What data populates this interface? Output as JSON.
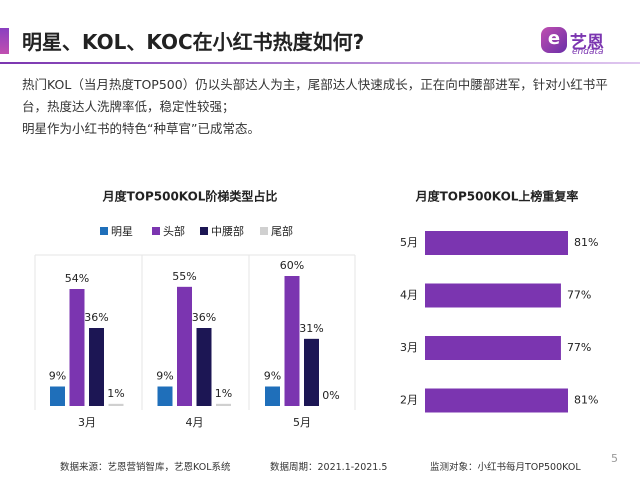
{
  "header": {
    "title": "明星、KOL、KOC在小红书热度如何?",
    "logo": "艺恩",
    "logo_sub": "endata"
  },
  "body": [
    "热门KOL（当月热度TOP500）仍以头部达人为主，尾部达人快速成长，正在向中腰部进军，针对小红书平台，热度达人洗牌率低，稳定性较强；",
    "明星作为小红书的特色“种草官”已成常态。"
  ],
  "footer": {
    "source": "数据来源：艺恩营销智库，艺恩KOL系统",
    "period": "数据周期：2021.1-2021.5",
    "object": "监测对象：小红书每月TOP500KOL",
    "page": "5"
  },
  "chart_data": [
    {
      "type": "bar",
      "title": "月度TOP500KOL阶梯类型占比",
      "categories": [
        "3月",
        "4月",
        "5月"
      ],
      "series": [
        {
          "name": "明星",
          "color": "#1f6fba",
          "values": [
            9,
            9,
            9
          ],
          "value_labels": [
            "9%",
            "9%",
            "9%"
          ]
        },
        {
          "name": "头部",
          "color": "#7b35b0",
          "values": [
            54,
            55,
            60
          ],
          "value_labels": [
            "54%",
            "55%",
            "60%"
          ]
        },
        {
          "name": "中腰部",
          "color": "#1c1654",
          "values": [
            36,
            36,
            31
          ],
          "value_labels": [
            "36%",
            "36%",
            "31%"
          ]
        },
        {
          "name": "尾部",
          "color": "#d0d0d0",
          "values": [
            1,
            1,
            0
          ],
          "value_labels": [
            "1%",
            "1%",
            "0%"
          ]
        }
      ]
    },
    {
      "type": "barh",
      "title": "月度TOP500KOL上榜重复率",
      "categories": [
        "5月",
        "4月",
        "3月",
        "2月"
      ],
      "values": [
        81,
        77,
        77,
        81
      ],
      "value_labels": [
        "81%",
        "77%",
        "77%",
        "81%"
      ],
      "color": "#7b35b0"
    }
  ]
}
